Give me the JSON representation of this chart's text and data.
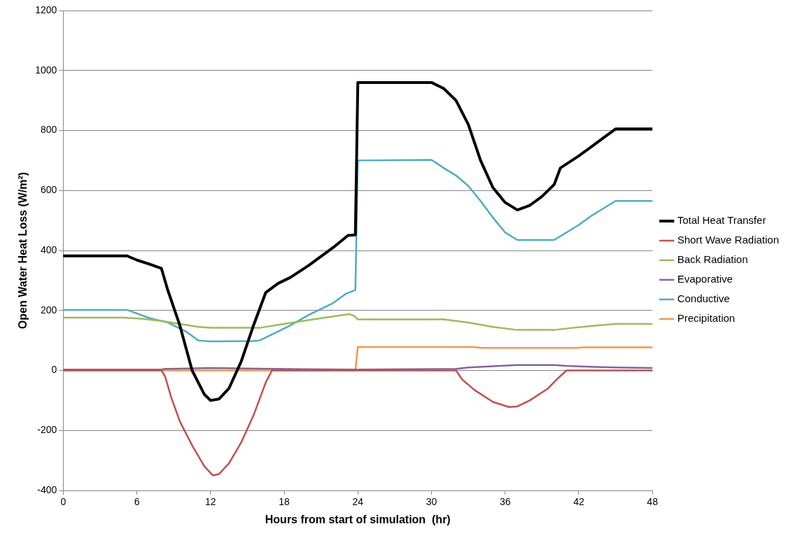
{
  "chart_data": {
    "type": "line",
    "xlabel": "Hours from start of simulation  (hr)",
    "ylabel": "Open Water Heat Loss (W/m²)",
    "xlim": [
      0,
      48
    ],
    "xticks": [
      0,
      6,
      12,
      18,
      24,
      30,
      36,
      42,
      48
    ],
    "ylim": [
      -400,
      1200
    ],
    "yticks": [
      -400,
      -200,
      0,
      200,
      400,
      600,
      800,
      1000,
      1200
    ],
    "grid": "y",
    "legend": "right",
    "marker": "none",
    "line_style": "solid",
    "series": [
      {
        "name": "Total Heat Transfer",
        "color": "#000000",
        "x": [
          0,
          5.2,
          6,
          7,
          8,
          8.5,
          9.5,
          10.5,
          11.5,
          12,
          12.7,
          13.5,
          14.5,
          15.5,
          16.5,
          17.5,
          18.5,
          20,
          22,
          23.2,
          23.8,
          24,
          30,
          31,
          32,
          33,
          34,
          35,
          36,
          37,
          38,
          39,
          40,
          40.5,
          42,
          43,
          44,
          45,
          48
        ],
        "values": [
          382,
          382,
          368,
          355,
          340,
          270,
          150,
          0,
          -80,
          -100,
          -95,
          -60,
          30,
          150,
          260,
          290,
          310,
          350,
          410,
          450,
          452,
          960,
          960,
          940,
          900,
          820,
          700,
          610,
          560,
          535,
          550,
          580,
          620,
          675,
          715,
          745,
          775,
          805,
          805
        ]
      },
      {
        "name": "Short Wave Radiation",
        "color": "#c0504d",
        "x": [
          0,
          8,
          8.3,
          8.8,
          9.5,
          10.5,
          11.5,
          12.2,
          12.7,
          13.5,
          14.5,
          15.5,
          16.5,
          17,
          32,
          32.5,
          33.5,
          35,
          36.3,
          37,
          38,
          39.5,
          40.2,
          41,
          48
        ],
        "values": [
          0,
          0,
          -20,
          -90,
          -170,
          -250,
          -320,
          -350,
          -345,
          -310,
          -240,
          -150,
          -40,
          0,
          0,
          -30,
          -65,
          -105,
          -122,
          -120,
          -100,
          -60,
          -30,
          0,
          0
        ]
      },
      {
        "name": "Back Radiation",
        "color": "#9bbb59",
        "x": [
          0,
          5,
          6.5,
          8,
          9.5,
          11,
          12,
          16,
          18,
          20,
          22,
          23.3,
          23.7,
          24,
          31,
          33,
          35,
          37,
          40,
          41.5,
          43,
          45,
          48
        ],
        "values": [
          176,
          176,
          172,
          165,
          155,
          145,
          142,
          142,
          155,
          168,
          180,
          188,
          182,
          170,
          170,
          160,
          145,
          135,
          135,
          142,
          148,
          155,
          155
        ]
      },
      {
        "name": "Evaporative",
        "color": "#8064a2",
        "x": [
          0,
          8,
          8.3,
          12,
          16,
          20,
          24,
          32,
          33,
          35,
          37,
          40,
          41,
          43,
          45,
          48
        ],
        "values": [
          3,
          3,
          5,
          8,
          6,
          4,
          3,
          5,
          10,
          14,
          18,
          18,
          15,
          12,
          10,
          8
        ]
      },
      {
        "name": "Conductive",
        "color": "#4bacc6",
        "x": [
          0,
          5.2,
          7,
          8.5,
          10,
          11,
          12,
          15.5,
          16,
          17,
          18.5,
          20,
          22,
          23,
          23.8,
          24,
          30,
          31,
          32,
          33,
          34,
          35,
          36,
          37,
          40,
          41,
          42,
          43,
          44,
          45,
          48
        ],
        "values": [
          202,
          202,
          175,
          160,
          130,
          100,
          97,
          98,
          100,
          120,
          150,
          185,
          225,
          255,
          268,
          700,
          702,
          675,
          650,
          615,
          565,
          510,
          460,
          435,
          435,
          460,
          485,
          515,
          540,
          565,
          565
        ]
      },
      {
        "name": "Precipitation",
        "color": "#f79646",
        "x": [
          0,
          23.8,
          24,
          33.5,
          34,
          42,
          42.2,
          48
        ],
        "values": [
          0,
          0,
          78,
          78,
          75,
          75,
          77,
          77
        ]
      }
    ]
  }
}
